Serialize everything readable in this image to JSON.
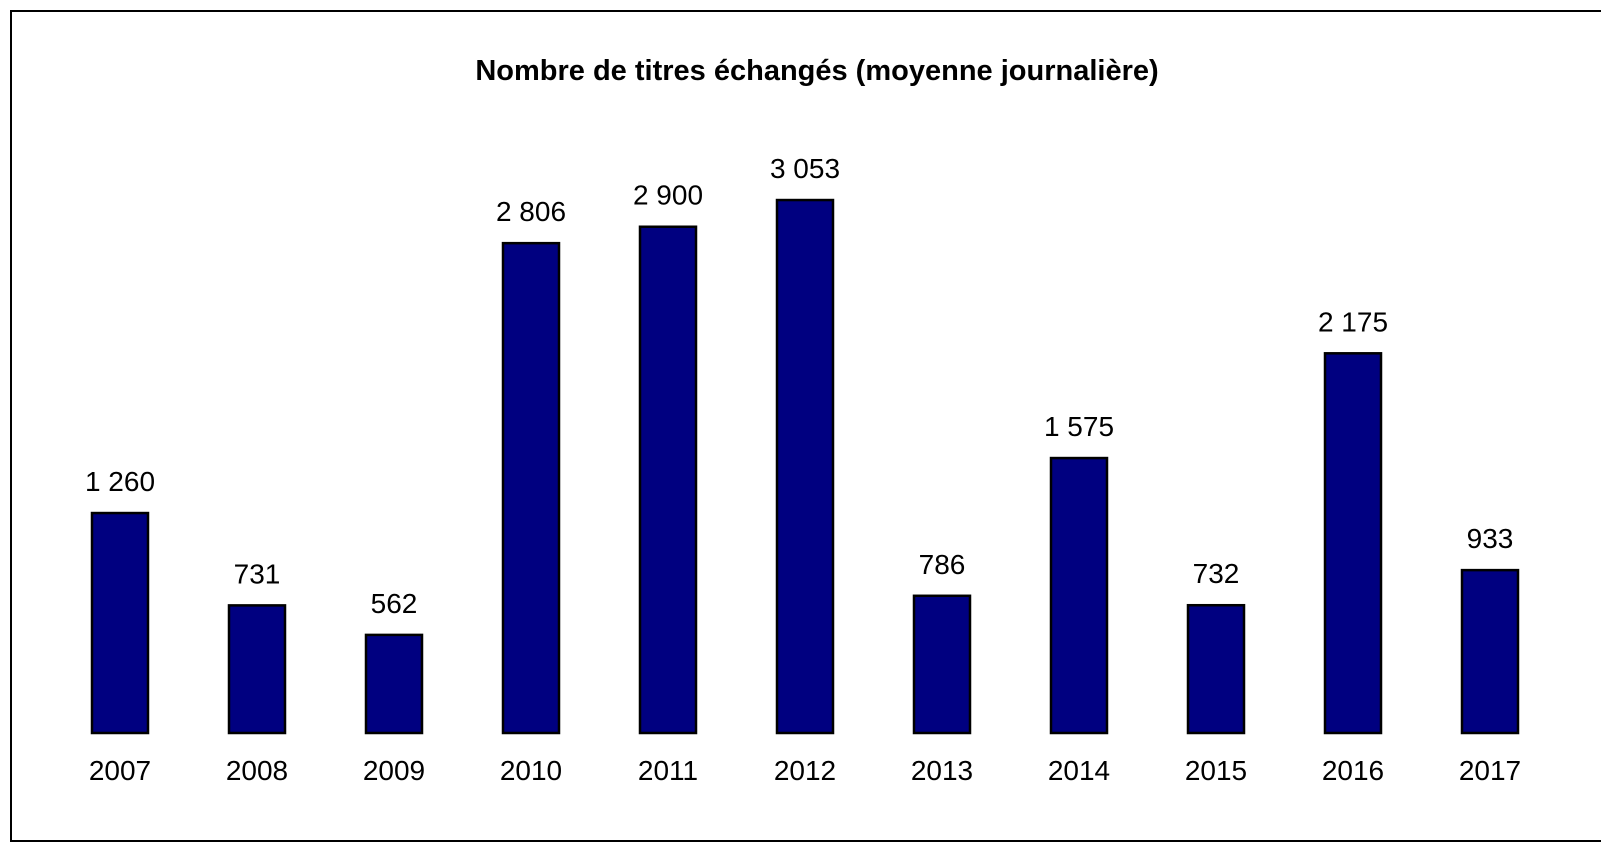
{
  "chart_data": {
    "type": "bar",
    "title": "Nombre de titres échangés (moyenne journalière)",
    "categories": [
      "2007",
      "2008",
      "2009",
      "2010",
      "2011",
      "2012",
      "2013",
      "2014",
      "2015",
      "2016",
      "2017"
    ],
    "values": [
      1260,
      731,
      562,
      2806,
      2900,
      3053,
      786,
      1575,
      732,
      2175,
      933
    ],
    "value_labels": [
      "1 260",
      "731",
      "562",
      "2 806",
      "2 900",
      "3 053",
      "786",
      "1 575",
      "732",
      "2 175",
      "933"
    ],
    "color": "#000080",
    "ylim": [
      0,
      3500
    ]
  }
}
